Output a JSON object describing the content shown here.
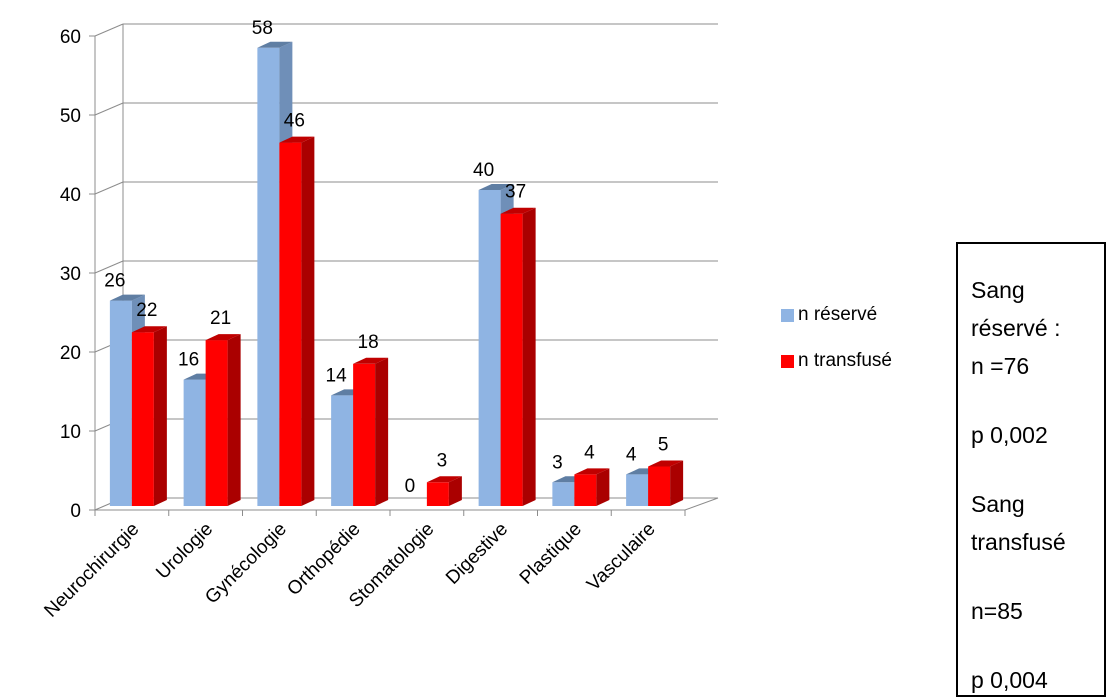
{
  "chart_data": {
    "type": "bar",
    "title": "",
    "xlabel": "",
    "ylabel": "",
    "ylim": [
      0,
      60
    ],
    "yticks": [
      0,
      10,
      20,
      30,
      40,
      50,
      60
    ],
    "grid": true,
    "legend_position": "right",
    "categories": [
      "Neurochirurgie",
      "Urologie",
      "Gynécologie",
      "Orthopédie",
      "Stomatologie",
      "Digestive",
      "Plastique",
      "Vasculaire"
    ],
    "series": [
      {
        "name": "n réservé",
        "color": "#8FB4E3",
        "values": [
          26,
          16,
          58,
          14,
          0,
          40,
          3,
          4
        ]
      },
      {
        "name": "n transfusé",
        "color": "#FF0000",
        "values": [
          22,
          21,
          46,
          18,
          3,
          37,
          4,
          5
        ]
      }
    ]
  },
  "stats_box": {
    "reserved_label_1": "Sang",
    "reserved_label_2": "réservé :",
    "reserved_n": "n =76",
    "reserved_p": "p 0,002",
    "transfused_label_1": "Sang",
    "transfused_label_2": "transfusé",
    "transfused_n": "n=85",
    "transfused_p": "p 0,004"
  }
}
